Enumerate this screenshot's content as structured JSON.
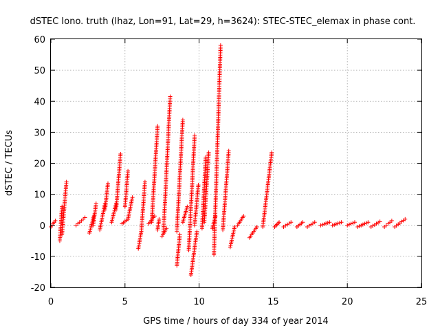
{
  "chart_data": {
    "type": "scatter",
    "title": "dSTEC Iono. truth (lhaz, Lon=91, Lat=29, h=3624): STEC-STEC_elemax in phase cont.",
    "xlabel": "GPS time / hours of day 334 of year 2014",
    "ylabel": "dSTEC  / TECUs",
    "xlim": [
      0,
      25
    ],
    "ylim": [
      -20,
      60
    ],
    "xticks": [
      0,
      5,
      10,
      15,
      20,
      25
    ],
    "yticks": [
      -20,
      -10,
      0,
      10,
      20,
      30,
      40,
      50,
      60
    ],
    "grid": true,
    "marker": "+",
    "color": "#ff0000",
    "segments": [
      {
        "x": [
          0.0,
          0.3
        ],
        "y": [
          -0.5,
          1.5
        ]
      },
      {
        "x": [
          0.6,
          0.75
        ],
        "y": [
          -5,
          6
        ]
      },
      {
        "x": [
          0.75,
          1.05
        ],
        "y": [
          -3,
          14
        ]
      },
      {
        "x": [
          1.7,
          2.3
        ],
        "y": [
          0,
          2.5
        ]
      },
      {
        "x": [
          2.6,
          2.9
        ],
        "y": [
          -2.5,
          3
        ]
      },
      {
        "x": [
          2.85,
          3.05
        ],
        "y": [
          0,
          7
        ]
      },
      {
        "x": [
          3.3,
          3.65
        ],
        "y": [
          -1.5,
          7
        ]
      },
      {
        "x": [
          3.65,
          3.85
        ],
        "y": [
          5,
          13.5
        ]
      },
      {
        "x": [
          4.1,
          4.4
        ],
        "y": [
          1,
          7
        ]
      },
      {
        "x": [
          4.4,
          4.7
        ],
        "y": [
          5,
          23
        ]
      },
      {
        "x": [
          4.8,
          5.2
        ],
        "y": [
          0.5,
          2
        ]
      },
      {
        "x": [
          5.0,
          5.2
        ],
        "y": [
          6,
          17.5
        ]
      },
      {
        "x": [
          5.2,
          5.5
        ],
        "y": [
          2,
          9
        ]
      },
      {
        "x": [
          5.9,
          6.1
        ],
        "y": [
          -7.5,
          -2
        ]
      },
      {
        "x": [
          6.1,
          6.35
        ],
        "y": [
          -2,
          14
        ]
      },
      {
        "x": [
          6.6,
          7.0
        ],
        "y": [
          0.5,
          3
        ]
      },
      {
        "x": [
          6.8,
          7.2
        ],
        "y": [
          1,
          32
        ]
      },
      {
        "x": [
          7.2,
          7.3
        ],
        "y": [
          -1.5,
          2
        ]
      },
      {
        "x": [
          7.5,
          7.8
        ],
        "y": [
          -3.5,
          -1
        ]
      },
      {
        "x": [
          7.6,
          8.05
        ],
        "y": [
          -2,
          41.5
        ]
      },
      {
        "x": [
          8.5,
          8.7
        ],
        "y": [
          -13,
          -3
        ]
      },
      {
        "x": [
          8.5,
          8.9
        ],
        "y": [
          -2,
          34
        ]
      },
      {
        "x": [
          8.9,
          9.2
        ],
        "y": [
          1,
          6
        ]
      },
      {
        "x": [
          9.3,
          9.7
        ],
        "y": [
          -8,
          29
        ]
      },
      {
        "x": [
          9.45,
          9.85
        ],
        "y": [
          -16,
          -2
        ]
      },
      {
        "x": [
          9.7,
          9.95
        ],
        "y": [
          0,
          13
        ]
      },
      {
        "x": [
          10.2,
          10.45
        ],
        "y": [
          -1,
          22
        ]
      },
      {
        "x": [
          10.35,
          10.65
        ],
        "y": [
          1,
          23.5
        ]
      },
      {
        "x": [
          10.9,
          11.1
        ],
        "y": [
          -1,
          3
        ]
      },
      {
        "x": [
          11.0,
          11.45
        ],
        "y": [
          -9.5,
          58
        ]
      },
      {
        "x": [
          11.6,
          12.0
        ],
        "y": [
          -1.5,
          24
        ]
      },
      {
        "x": [
          12.1,
          12.4
        ],
        "y": [
          -7,
          -0.5
        ]
      },
      {
        "x": [
          12.6,
          13.0
        ],
        "y": [
          0,
          3
        ]
      },
      {
        "x": [
          13.4,
          13.9
        ],
        "y": [
          -4,
          -0.5
        ]
      },
      {
        "x": [
          14.3,
          14.9
        ],
        "y": [
          -0.5,
          23.5
        ]
      },
      {
        "x": [
          15.1,
          15.4
        ],
        "y": [
          -0.5,
          1
        ]
      },
      {
        "x": [
          15.7,
          16.2
        ],
        "y": [
          -0.5,
          1
        ]
      },
      {
        "x": [
          16.6,
          17.0
        ],
        "y": [
          -0.5,
          1
        ]
      },
      {
        "x": [
          17.3,
          17.8
        ],
        "y": [
          -0.5,
          1
        ]
      },
      {
        "x": [
          18.2,
          18.8
        ],
        "y": [
          0,
          1
        ]
      },
      {
        "x": [
          19.0,
          19.6
        ],
        "y": [
          0,
          1
        ]
      },
      {
        "x": [
          20.0,
          20.5
        ],
        "y": [
          0,
          1
        ]
      },
      {
        "x": [
          20.7,
          21.4
        ],
        "y": [
          -0.5,
          1
        ]
      },
      {
        "x": [
          21.6,
          22.2
        ],
        "y": [
          -0.5,
          1.2
        ]
      },
      {
        "x": [
          22.5,
          23.0
        ],
        "y": [
          -0.5,
          1.5
        ]
      },
      {
        "x": [
          23.2,
          23.9
        ],
        "y": [
          -0.5,
          2
        ]
      }
    ]
  }
}
